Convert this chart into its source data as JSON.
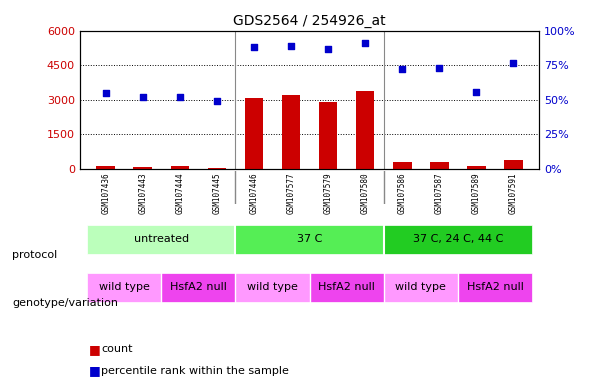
{
  "title": "GDS2564 / 254926_at",
  "samples": [
    "GSM107436",
    "GSM107443",
    "GSM107444",
    "GSM107445",
    "GSM107446",
    "GSM107577",
    "GSM107579",
    "GSM107580",
    "GSM107586",
    "GSM107587",
    "GSM107589",
    "GSM107591"
  ],
  "counts": [
    120,
    80,
    150,
    60,
    3100,
    3200,
    2900,
    3400,
    300,
    300,
    150,
    400
  ],
  "percentiles": [
    55,
    52,
    52,
    49,
    88,
    89,
    87,
    91,
    72,
    73,
    56,
    77
  ],
  "bar_color": "#cc0000",
  "dot_color": "#0000cc",
  "ylim_left": [
    0,
    6000
  ],
  "ylim_right": [
    0,
    100
  ],
  "yticks_left": [
    0,
    1500,
    3000,
    4500,
    6000
  ],
  "ytick_labels_left": [
    "0",
    "1500",
    "3000",
    "4500",
    "6000"
  ],
  "yticks_right": [
    0,
    25,
    50,
    75,
    100
  ],
  "ytick_labels_right": [
    "0%",
    "25%",
    "50%",
    "75%",
    "100%"
  ],
  "protocol_groups": [
    {
      "label": "untreated",
      "start": 0,
      "end": 4,
      "color": "#aaffaa"
    },
    {
      "label": "37 C",
      "start": 4,
      "end": 8,
      "color": "#55dd55"
    },
    {
      "label": "37 C, 24 C, 44 C",
      "start": 8,
      "end": 12,
      "color": "#00bb00"
    }
  ],
  "genotype_groups": [
    {
      "label": "wild type",
      "start": 0,
      "end": 2,
      "color": "#ff88ff"
    },
    {
      "label": "HsfA2 null",
      "start": 2,
      "end": 4,
      "color": "#ff44ff"
    },
    {
      "label": "wild type",
      "start": 4,
      "end": 6,
      "color": "#ff88ff"
    },
    {
      "label": "HsfA2 null",
      "start": 6,
      "end": 8,
      "color": "#ff44ff"
    },
    {
      "label": "wild type",
      "start": 8,
      "end": 10,
      "color": "#ff88ff"
    },
    {
      "label": "HsfA2 null",
      "start": 10,
      "end": 12,
      "color": "#ff44ff"
    }
  ],
  "protocol_label": "protocol",
  "genotype_label": "genotype/variation",
  "legend_count": "count",
  "legend_percentile": "percentile rank within the sample",
  "bg_color": "#ffffff",
  "tick_area_color": "#dddddd",
  "separator_color": "#888888"
}
